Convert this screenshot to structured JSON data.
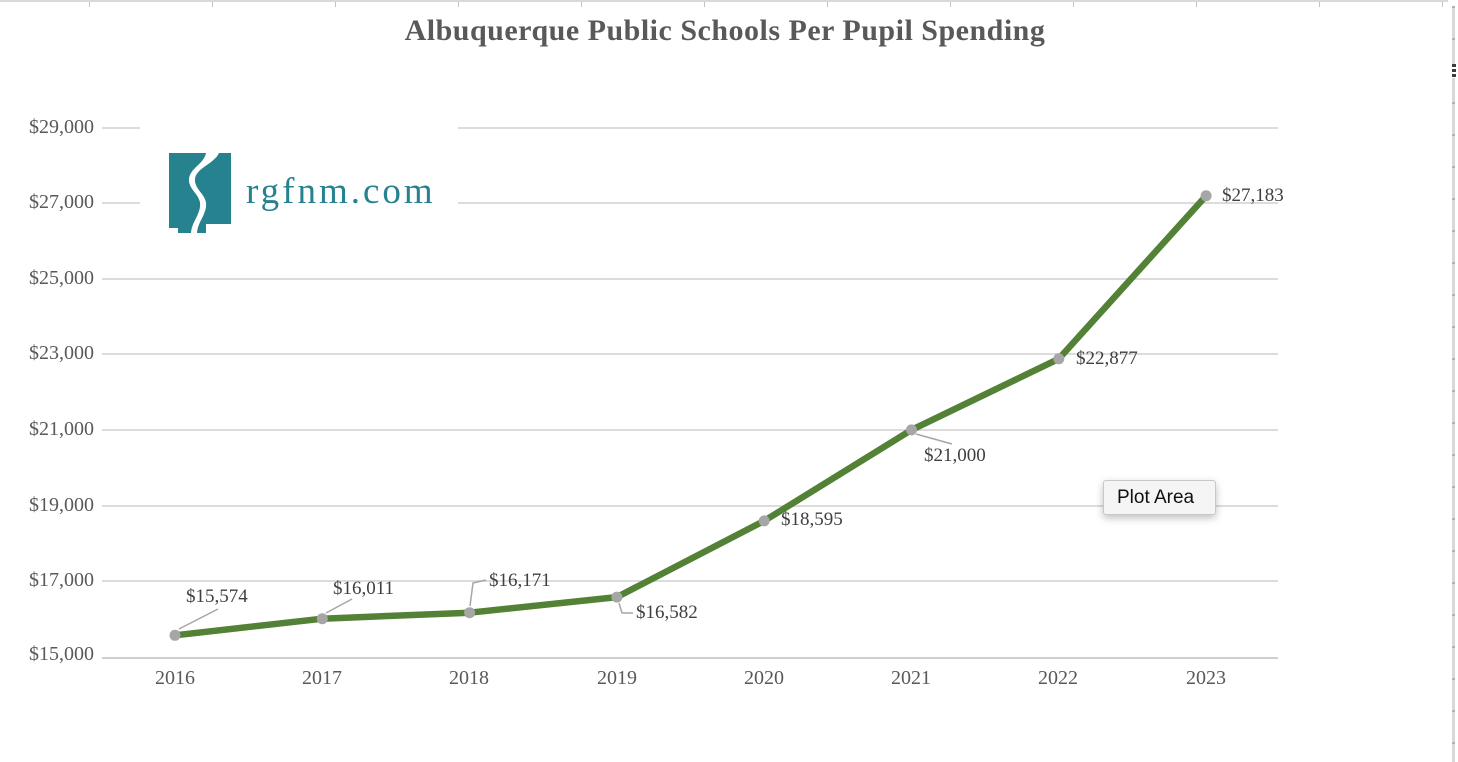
{
  "title": "Albuquerque Public Schools Per Pupil Spending",
  "logo": {
    "text": "rgfnm.com",
    "icon": "new-mexico-river-logo",
    "color": "#26828f"
  },
  "tooltip": {
    "text": "Plot Area"
  },
  "chart_data": {
    "type": "line",
    "title": "Albuquerque Public Schools Per Pupil Spending",
    "categories": [
      "2016",
      "2017",
      "2018",
      "2019",
      "2020",
      "2021",
      "2022",
      "2023"
    ],
    "values": [
      15574,
      16011,
      16171,
      16582,
      18595,
      21000,
      22877,
      27183
    ],
    "point_labels": [
      "$15,574",
      "$16,011",
      "$16,171",
      "$16,582",
      "$18,595",
      "$21,000",
      "$22,877",
      "$27,183"
    ],
    "y_tick_labels": [
      "$29,000",
      "$27,000",
      "$25,000",
      "$23,000",
      "$21,000",
      "$19,000",
      "$17,000",
      "$15,000"
    ],
    "ylim": [
      15000,
      29000
    ],
    "y_tick_step": 2000,
    "xlabel": "",
    "ylabel": "",
    "grid": "horizontal",
    "legend": "none",
    "line_color": "#538135",
    "marker_color": "#a6a6a6",
    "leader_line_color": "#a6a6a6"
  }
}
